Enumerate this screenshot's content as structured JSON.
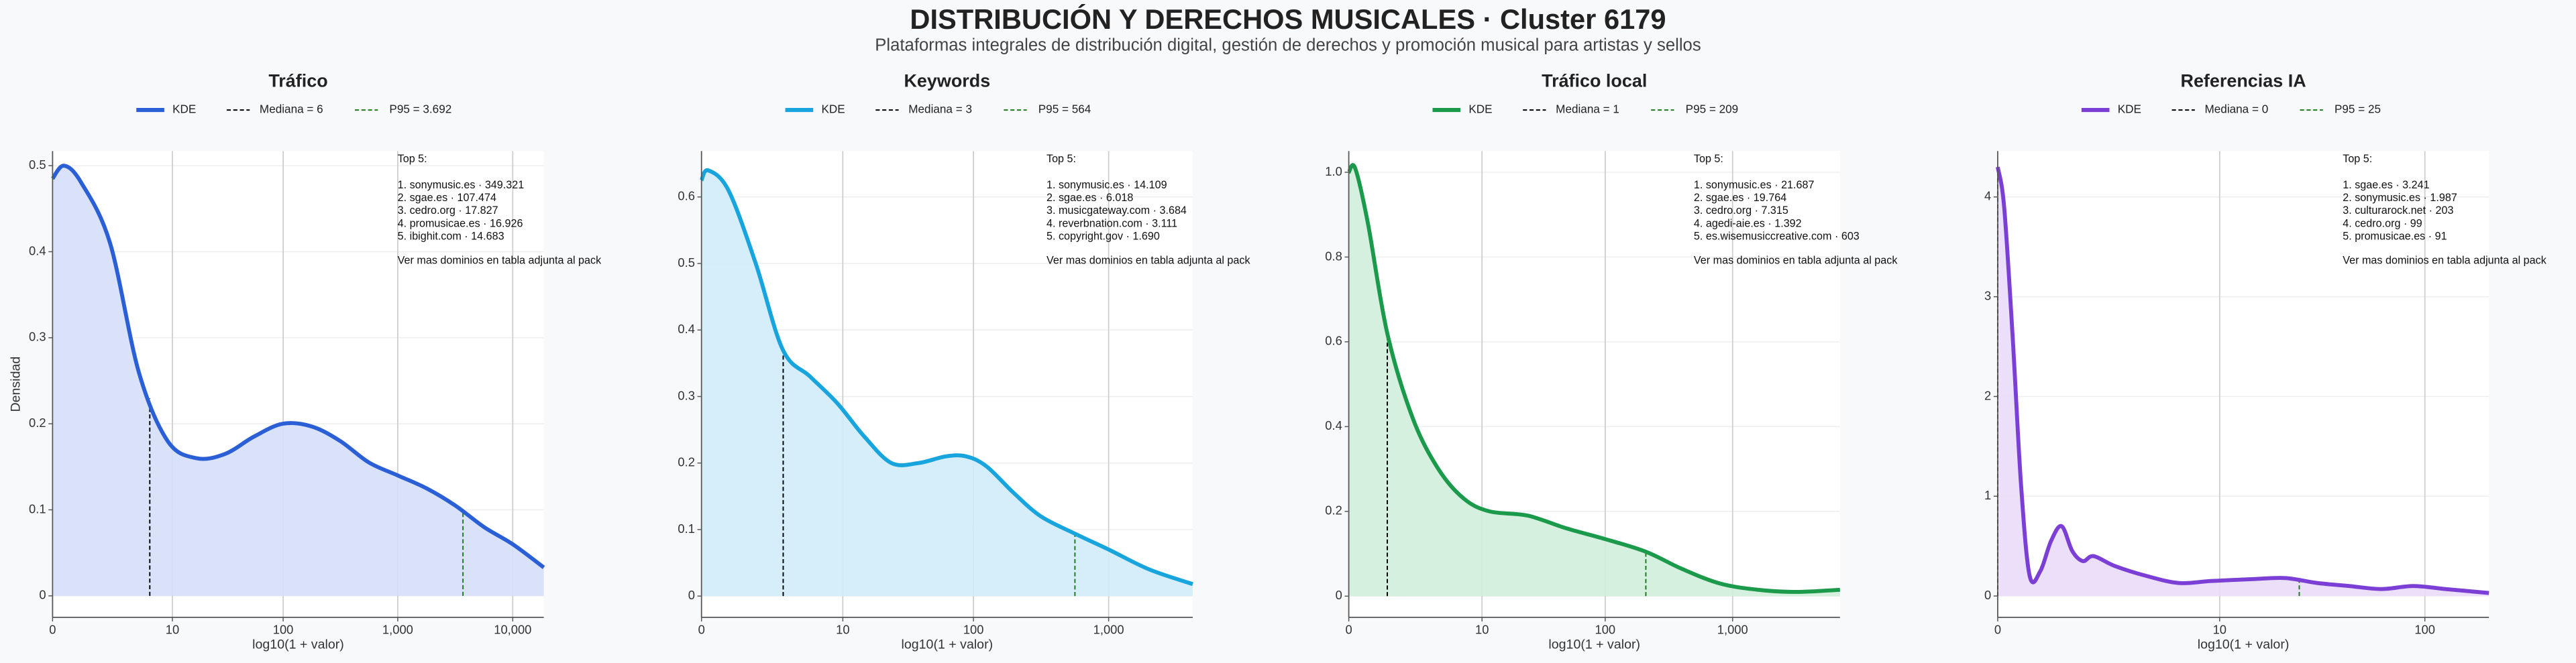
{
  "title": "DISTRIBUCIÓN Y DERECHOS MUSICALES · Cluster 6179",
  "subtitle": "Plataformas integrales de distribución digital, gestión de derechos y promoción musical para artistas y sellos",
  "chart_data": [
    {
      "type": "area",
      "title": "Tráfico",
      "xlabel": "log10(1 + valor)",
      "ylabel": "Densidad",
      "xscale": "log1p",
      "grid": true,
      "x": [
        0,
        0.26,
        0.78,
        2.16,
        4.62,
        9,
        16.8,
        30.6,
        55.2,
        99,
        177,
        315,
        561,
        999,
        1777,
        3161,
        5622,
        9999,
        18620
      ],
      "series": [
        {
          "name": "KDE",
          "color": "#2a5fd6",
          "fill": "#d6dff9",
          "values": [
            0.485,
            0.5,
            0.48,
            0.41,
            0.26,
            0.18,
            0.16,
            0.165,
            0.185,
            0.2,
            0.197,
            0.18,
            0.155,
            0.14,
            0.125,
            0.105,
            0.08,
            0.06,
            0.033
          ]
        }
      ],
      "xlim": [
        0,
        18620
      ],
      "xticks": [
        0,
        10,
        100,
        {
          "value": 1000,
          "label": "1,000"
        },
        {
          "value": 10000,
          "label": "10,000"
        }
      ],
      "ylim": [
        -0.025,
        0.517
      ],
      "yticks": [
        0,
        0.1,
        0.2,
        0.3,
        0.4,
        0.5
      ],
      "median": {
        "value": 6,
        "label": "Mediana = 6"
      },
      "median_color": "#000000",
      "p95": {
        "value": 3692,
        "label": "P95 = 3.692"
      },
      "p95_color": "#1e7a1e",
      "annotation": {
        "heading": "Top 5:",
        "items": [
          "1. sonymusic.es · 349.321",
          "2. sgae.es · 107.474",
          "3. cedro.org · 17.827",
          "4. promusicae.es · 16.926",
          "5. ibighit.com · 14.683"
        ],
        "footer": "Ver mas dominios en tabla adjunta al pack"
      }
    },
    {
      "type": "area",
      "title": "Keywords",
      "xlabel": "log10(1 + valor)",
      "xscale": "log1p",
      "grid": true,
      "x": [
        0,
        0.12,
        0.58,
        1.51,
        2.98,
        5.31,
        9,
        14.8,
        24.1,
        38.8,
        62.1,
        88.1,
        125,
        199,
        315,
        561,
        999,
        1994,
        4168
      ],
      "series": [
        {
          "name": "KDE",
          "color": "#18a4dc",
          "fill": "#d0ecf9",
          "values": [
            0.625,
            0.64,
            0.61,
            0.5,
            0.37,
            0.33,
            0.29,
            0.24,
            0.2,
            0.2,
            0.21,
            0.21,
            0.195,
            0.155,
            0.12,
            0.094,
            0.07,
            0.04,
            0.018
          ]
        }
      ],
      "xlim": [
        0,
        4168
      ],
      "xticks": [
        0,
        10,
        100,
        {
          "value": 1000,
          "label": "1,000"
        }
      ],
      "ylim": [
        -0.032,
        0.669
      ],
      "yticks": [
        0,
        0.1,
        0.2,
        0.3,
        0.4,
        0.5,
        0.6
      ],
      "median": {
        "value": 3,
        "label": "Mediana = 3"
      },
      "median_color": "#000000",
      "p95": {
        "value": 564,
        "label": "P95 = 564"
      },
      "p95_color": "#1e7a1e",
      "annotation": {
        "heading": "Top 5:",
        "items": [
          "1. sonymusic.es · 14.109",
          "2. sgae.es · 6.018",
          "3. musicgateway.com · 3.684",
          "4. reverbnation.com · 3.111",
          "5. copyright.gov · 1.690"
        ],
        "footer": "Ver mas dominios en tabla adjunta al pack"
      }
    },
    {
      "type": "area",
      "title": "Tráfico local",
      "xlabel": "log10(1 + valor)",
      "xscale": "log1p",
      "grid": true,
      "x": [
        0,
        0.12,
        0.41,
        1,
        2.16,
        4.01,
        6.94,
        11.6,
        24.1,
        49.1,
        99,
        208,
        397,
        793,
        1584,
        3161,
        6917
      ],
      "series": [
        {
          "name": "KDE",
          "color": "#1a9a4a",
          "fill": "#d1eedb",
          "values": [
            1.0,
            1.01,
            0.88,
            0.62,
            0.42,
            0.3,
            0.23,
            0.2,
            0.19,
            0.16,
            0.135,
            0.105,
            0.065,
            0.03,
            0.015,
            0.01,
            0.015
          ]
        }
      ],
      "xlim": [
        0,
        6917
      ],
      "xticks": [
        0,
        10,
        100,
        {
          "value": 1000,
          "label": "1,000"
        }
      ],
      "ylim": [
        -0.05,
        1.05
      ],
      "yticks": [
        0,
        0.2,
        0.4,
        0.6,
        0.8,
        {
          "value": 1,
          "label": "1.0"
        }
      ],
      "median": {
        "value": 1,
        "label": "Mediana = 1"
      },
      "median_color": "#000000",
      "p95": {
        "value": 209,
        "label": "P95 = 209"
      },
      "p95_color": "#1e7a1e",
      "annotation": {
        "heading": "Top 5:",
        "items": [
          "1. sonymusic.es · 21.687",
          "2. sgae.es · 19.764",
          "3. cedro.org · 7.315",
          "4. agedi-aie.es · 1.392",
          "5. es.wisemusiccreative.com · 603"
        ],
        "footer": "Ver mas dominios en tabla adjunta al pack"
      }
    },
    {
      "type": "area",
      "title": "Referencias IA",
      "xlabel": "log10(1 + valor)",
      "xscale": "log1p",
      "grid": true,
      "x": [
        0,
        0.072,
        0.175,
        0.288,
        0.413,
        0.585,
        0.778,
        0.995,
        1.239,
        1.512,
        1.818,
        2.548,
        4.012,
        6.079,
        9,
        14.85,
        21.39,
        30.62,
        43.67,
        62.1,
        88.13,
        124.9,
        200.8
      ],
      "series": [
        {
          "name": "KDE",
          "color": "#7b3fd6",
          "fill": "#eadbfa",
          "values": [
            4.3,
            3.9,
            2.6,
            1.1,
            0.2,
            0.25,
            0.55,
            0.7,
            0.45,
            0.35,
            0.4,
            0.3,
            0.2,
            0.13,
            0.15,
            0.17,
            0.18,
            0.13,
            0.1,
            0.07,
            0.1,
            0.07,
            0.03
          ]
        }
      ],
      "xlim": [
        0,
        200.8
      ],
      "xticks": [
        0,
        10,
        100
      ],
      "ylim": [
        -0.214,
        4.46
      ],
      "yticks": [
        0,
        1,
        2,
        3,
        4
      ],
      "median": {
        "value": 0,
        "label": "Mediana = 0"
      },
      "median_color": "#000000",
      "p95": {
        "value": 25,
        "label": "P95 = 25"
      },
      "p95_color": "#1e7a1e",
      "annotation": {
        "heading": "Top 5:",
        "items": [
          "1. sgae.es · 3.241",
          "2. sonymusic.es · 1.987",
          "3. culturarock.net · 203",
          "4. cedro.org · 99",
          "5. promusicae.es · 91"
        ],
        "footer": "Ver mas dominios en tabla adjunta al pack"
      }
    }
  ]
}
